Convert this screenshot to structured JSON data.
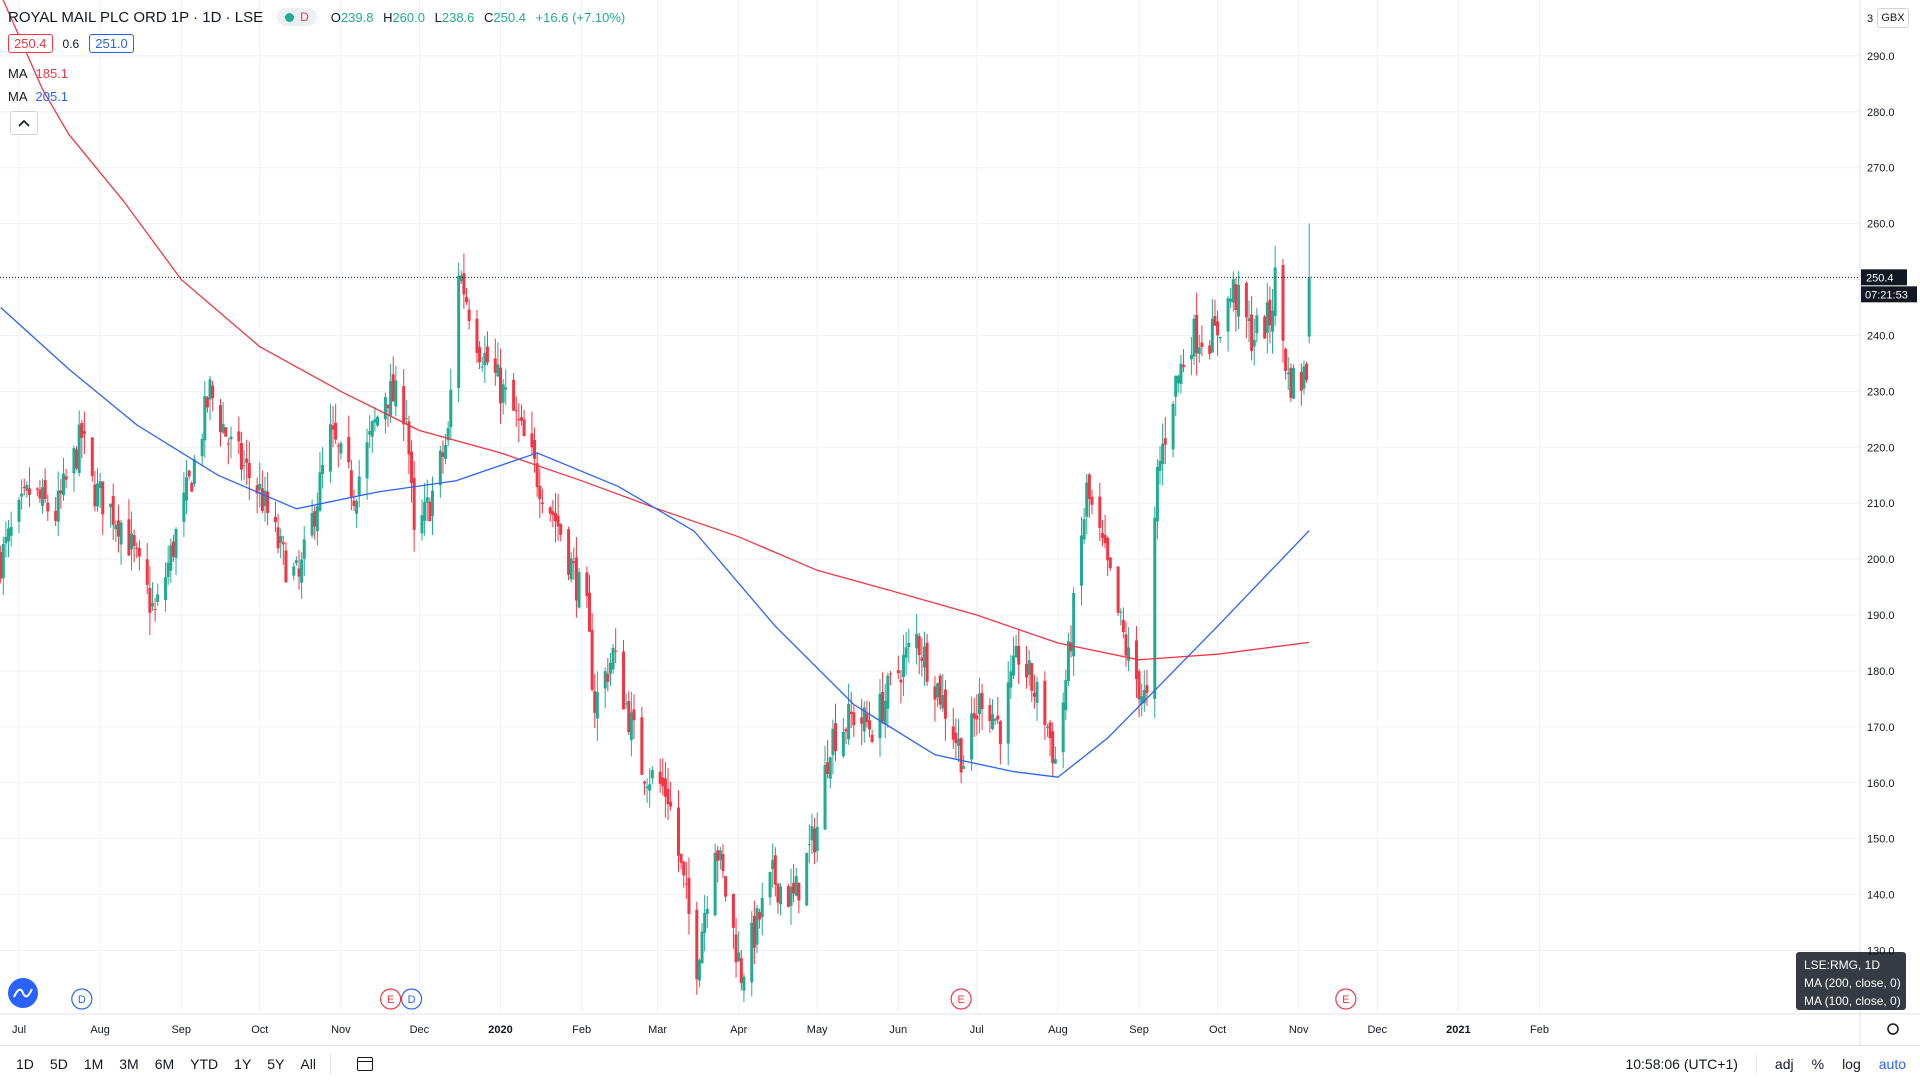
{
  "header": {
    "title": "ROYAL MAIL PLC ORD 1P · 1D · LSE",
    "d_badge": "D",
    "ohlc": {
      "o_label": "O",
      "o_value": "239.8",
      "h_label": "H",
      "h_value": "260.0",
      "l_label": "L",
      "l_value": "238.6",
      "c_label": "C",
      "c_value": "250.4",
      "change": "+16.6 (+7.10%)"
    },
    "bid": "250.4",
    "spread": "0.6",
    "ask": "251.0",
    "ma1": {
      "name": "MA",
      "value": "185.1",
      "color": "#f23645"
    },
    "ma2": {
      "name": "MA",
      "value": "205.1",
      "color": "#2962ff"
    },
    "collapse_icon": "chevron-up-icon"
  },
  "price_axis": {
    "currency": "GBX",
    "top_tick": "3",
    "last_price": "250.4",
    "countdown": "07:21:53"
  },
  "info_box": {
    "line1": "LSE:RMG, 1D",
    "line2": "MA (200, close, 0)",
    "line3": "MA (100, close, 0)"
  },
  "bottom_bar": {
    "timeframes": [
      "1D",
      "5D",
      "1M",
      "3M",
      "6M",
      "YTD",
      "1Y",
      "5Y",
      "All"
    ],
    "date_range_icon": "calendar-icon",
    "time": "10:58:06 (UTC+1)",
    "adj": "adj",
    "percent": "%",
    "log": "log",
    "auto": "auto"
  },
  "colors": {
    "up": "#22ab94",
    "down": "#f23645",
    "ma200": "#f23645",
    "ma100": "#2962ff",
    "grid": "#eef1f5"
  },
  "chart_data": {
    "type": "candlestick",
    "title": "ROYAL MAIL PLC ORD 1P · 1D · LSE",
    "ylim": [
      119,
      300
    ],
    "y_ticks": [
      130,
      140,
      150,
      160,
      170,
      180,
      190,
      200,
      210,
      220,
      230,
      240,
      250,
      260,
      270,
      280,
      290
    ],
    "x_axis_labels": [
      {
        "label": "Jul",
        "date": "2019-07-01"
      },
      {
        "label": "Aug",
        "date": "2019-08-01"
      },
      {
        "label": "Sep",
        "date": "2019-09-01"
      },
      {
        "label": "Oct",
        "date": "2019-10-01"
      },
      {
        "label": "Nov",
        "date": "2019-11-01"
      },
      {
        "label": "Dec",
        "date": "2019-12-01"
      },
      {
        "label": "2020",
        "date": "2020-01-01"
      },
      {
        "label": "Feb",
        "date": "2020-02-01"
      },
      {
        "label": "Mar",
        "date": "2020-03-01"
      },
      {
        "label": "Apr",
        "date": "2020-04-01"
      },
      {
        "label": "May",
        "date": "2020-05-01"
      },
      {
        "label": "Jun",
        "date": "2020-06-01"
      },
      {
        "label": "Jul",
        "date": "2020-07-01"
      },
      {
        "label": "Aug",
        "date": "2020-08-01"
      },
      {
        "label": "Sep",
        "date": "2020-09-01"
      },
      {
        "label": "Oct",
        "date": "2020-10-01"
      },
      {
        "label": "Nov",
        "date": "2020-11-01"
      },
      {
        "label": "Dec",
        "date": "2020-12-01"
      },
      {
        "label": "2021",
        "date": "2021-01-01"
      },
      {
        "label": "Feb",
        "date": "2021-02-01"
      }
    ],
    "close_anchors": [
      {
        "date": "2019-06-24",
        "close": 200
      },
      {
        "date": "2019-07-05",
        "close": 212
      },
      {
        "date": "2019-07-15",
        "close": 208
      },
      {
        "date": "2019-07-25",
        "close": 222
      },
      {
        "date": "2019-07-29",
        "close": 213
      },
      {
        "date": "2019-08-10",
        "close": 206
      },
      {
        "date": "2019-08-18",
        "close": 195
      },
      {
        "date": "2019-08-22",
        "close": 190
      },
      {
        "date": "2019-09-05",
        "close": 215
      },
      {
        "date": "2019-09-12",
        "close": 230
      },
      {
        "date": "2019-09-20",
        "close": 220
      },
      {
        "date": "2019-10-01",
        "close": 212
      },
      {
        "date": "2019-10-10",
        "close": 200
      },
      {
        "date": "2019-10-16",
        "close": 196
      },
      {
        "date": "2019-10-28",
        "close": 222
      },
      {
        "date": "2019-11-06",
        "close": 212
      },
      {
        "date": "2019-11-18",
        "close": 230
      },
      {
        "date": "2019-11-26",
        "close": 227
      },
      {
        "date": "2019-11-29",
        "close": 203
      },
      {
        "date": "2019-12-05",
        "close": 210
      },
      {
        "date": "2019-12-12",
        "close": 222
      },
      {
        "date": "2019-12-16",
        "close": 252
      },
      {
        "date": "2019-12-24",
        "close": 238
      },
      {
        "date": "2020-01-06",
        "close": 226
      },
      {
        "date": "2020-01-15",
        "close": 215
      },
      {
        "date": "2020-01-24",
        "close": 205
      },
      {
        "date": "2020-02-03",
        "close": 190
      },
      {
        "date": "2020-02-06",
        "close": 174
      },
      {
        "date": "2020-02-13",
        "close": 183
      },
      {
        "date": "2020-02-24",
        "close": 163
      },
      {
        "date": "2020-03-05",
        "close": 158
      },
      {
        "date": "2020-03-16",
        "close": 128
      },
      {
        "date": "2020-03-23",
        "close": 150
      },
      {
        "date": "2020-04-02",
        "close": 126
      },
      {
        "date": "2020-04-14",
        "close": 143
      },
      {
        "date": "2020-04-22",
        "close": 139
      },
      {
        "date": "2020-05-01",
        "close": 152
      },
      {
        "date": "2020-05-06",
        "close": 168
      },
      {
        "date": "2020-05-15",
        "close": 172
      },
      {
        "date": "2020-05-22",
        "close": 170
      },
      {
        "date": "2020-06-01",
        "close": 180
      },
      {
        "date": "2020-06-08",
        "close": 186
      },
      {
        "date": "2020-06-17",
        "close": 176
      },
      {
        "date": "2020-06-26",
        "close": 164
      },
      {
        "date": "2020-07-03",
        "close": 176
      },
      {
        "date": "2020-07-10",
        "close": 170
      },
      {
        "date": "2020-07-17",
        "close": 183
      },
      {
        "date": "2020-07-27",
        "close": 172
      },
      {
        "date": "2020-07-31",
        "close": 164
      },
      {
        "date": "2020-08-05",
        "close": 182
      },
      {
        "date": "2020-08-12",
        "close": 212
      },
      {
        "date": "2020-08-19",
        "close": 200
      },
      {
        "date": "2020-08-28",
        "close": 182
      },
      {
        "date": "2020-09-04",
        "close": 174
      },
      {
        "date": "2020-09-08",
        "close": 215
      },
      {
        "date": "2020-09-14",
        "close": 230
      },
      {
        "date": "2020-09-21",
        "close": 240
      },
      {
        "date": "2020-09-30",
        "close": 240
      },
      {
        "date": "2020-10-07",
        "close": 248
      },
      {
        "date": "2020-10-14",
        "close": 240
      },
      {
        "date": "2020-10-21",
        "close": 243
      },
      {
        "date": "2020-10-23",
        "close": 250
      },
      {
        "date": "2020-10-28",
        "close": 232
      },
      {
        "date": "2020-11-02",
        "close": 232
      },
      {
        "date": "2020-11-04",
        "close": 233.8
      },
      {
        "date": "2020-11-05",
        "close": 250.4
      }
    ],
    "last_candle": {
      "date": "2020-11-05",
      "open": 239.8,
      "high": 260.0,
      "low": 238.6,
      "close": 250.4
    },
    "series": [
      {
        "name": "MA (200, close, 0)",
        "color": "#f23645",
        "points": [
          {
            "date": "2019-06-24",
            "value": 301
          },
          {
            "date": "2019-07-10",
            "value": 284
          },
          {
            "date": "2019-07-20",
            "value": 276
          },
          {
            "date": "2019-08-10",
            "value": 264
          },
          {
            "date": "2019-09-01",
            "value": 250
          },
          {
            "date": "2019-10-01",
            "value": 238
          },
          {
            "date": "2019-11-01",
            "value": 230
          },
          {
            "date": "2019-12-01",
            "value": 223
          },
          {
            "date": "2020-01-01",
            "value": 219
          },
          {
            "date": "2020-02-01",
            "value": 214
          },
          {
            "date": "2020-03-01",
            "value": 209
          },
          {
            "date": "2020-04-01",
            "value": 204
          },
          {
            "date": "2020-05-01",
            "value": 198
          },
          {
            "date": "2020-06-01",
            "value": 194
          },
          {
            "date": "2020-07-01",
            "value": 190
          },
          {
            "date": "2020-08-01",
            "value": 185
          },
          {
            "date": "2020-09-01",
            "value": 182
          },
          {
            "date": "2020-10-01",
            "value": 183
          },
          {
            "date": "2020-11-05",
            "value": 185.1
          }
        ]
      },
      {
        "name": "MA (100, close, 0)",
        "color": "#2962ff",
        "points": [
          {
            "date": "2019-06-24",
            "value": 245
          },
          {
            "date": "2019-07-20",
            "value": 234
          },
          {
            "date": "2019-08-15",
            "value": 224
          },
          {
            "date": "2019-09-15",
            "value": 215
          },
          {
            "date": "2019-10-15",
            "value": 209
          },
          {
            "date": "2019-11-15",
            "value": 212
          },
          {
            "date": "2019-12-15",
            "value": 214
          },
          {
            "date": "2020-01-15",
            "value": 219
          },
          {
            "date": "2020-02-15",
            "value": 213
          },
          {
            "date": "2020-03-15",
            "value": 205
          },
          {
            "date": "2020-04-15",
            "value": 188
          },
          {
            "date": "2020-05-15",
            "value": 174
          },
          {
            "date": "2020-06-15",
            "value": 165
          },
          {
            "date": "2020-07-15",
            "value": 162
          },
          {
            "date": "2020-08-01",
            "value": 161
          },
          {
            "date": "2020-08-20",
            "value": 168
          },
          {
            "date": "2020-09-08",
            "value": 177
          },
          {
            "date": "2020-10-01",
            "value": 188
          },
          {
            "date": "2020-11-05",
            "value": 205.1
          }
        ]
      }
    ],
    "events": [
      {
        "type": "D",
        "date": "2019-07-25",
        "color": "#2962ff"
      },
      {
        "type": "E",
        "date": "2019-11-20",
        "color": "#f23645"
      },
      {
        "type": "D",
        "date": "2019-11-28",
        "color": "#2962ff"
      },
      {
        "type": "E",
        "date": "2020-06-25",
        "color": "#f23645"
      },
      {
        "type": "E",
        "date": "2020-11-19",
        "color": "#f23645"
      }
    ]
  }
}
